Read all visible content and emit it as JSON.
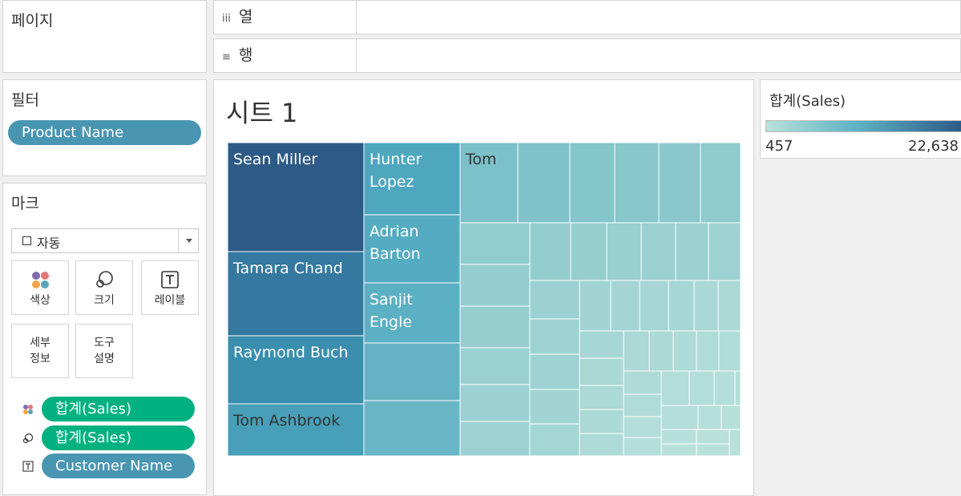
{
  "pages_panel": {
    "title": "페이지"
  },
  "shelves": {
    "columns": {
      "icon": "columns-icon",
      "glyph": "iii",
      "label": "열"
    },
    "rows": {
      "icon": "rows-icon",
      "glyph": "≡",
      "label": "행"
    }
  },
  "filters_panel": {
    "title": "필터",
    "pills": [
      "Product Name"
    ]
  },
  "marks_panel": {
    "title": "마크",
    "mark_type": "자동",
    "mark_type_icon": "square-icon",
    "buttons": [
      {
        "label": "색상",
        "icon": "color-icon"
      },
      {
        "label": "크기",
        "icon": "size-icon"
      },
      {
        "label": "레이블",
        "icon": "label-icon"
      },
      {
        "label_lines": [
          "세부",
          "정보"
        ],
        "icon": ""
      },
      {
        "label_lines": [
          "도구",
          "설명"
        ],
        "icon": ""
      }
    ],
    "fields": [
      {
        "icon": "color-icon",
        "label": "합계(Sales)",
        "color": "#00b180"
      },
      {
        "icon": "size-icon",
        "label": "합계(Sales)",
        "color": "#00b180"
      },
      {
        "icon": "label-icon",
        "label": "Customer Name",
        "color": "#4996b2"
      }
    ]
  },
  "sheet": {
    "title": "시트 1"
  },
  "legend": {
    "title": "합계(Sales)",
    "min_label": "457",
    "max_label": "22,638",
    "color_low": "#b9e1da",
    "color_high": "#2b5885"
  },
  "treemap": {
    "labeled_cells": [
      {
        "name": "Sean Miller",
        "lines": [
          "Sean Miller"
        ],
        "color": "#2d5a86"
      },
      {
        "name": "Tamara Chand",
        "lines": [
          "Tamara Chand"
        ],
        "color": "#3578a0"
      },
      {
        "name": "Raymond Buch",
        "lines": [
          "Raymond Buch"
        ],
        "color": "#3b8fae"
      },
      {
        "name": "Tom Ashbrook",
        "lines": [
          "Tom Ashbrook"
        ],
        "color": "#479fb9"
      },
      {
        "name": "Hunter Lopez",
        "lines": [
          "Hunter",
          "Lopez"
        ],
        "color": "#4ea7bf"
      },
      {
        "name": "Adrian Barton",
        "lines": [
          "Adrian",
          "Barton"
        ],
        "color": "#55abc1"
      },
      {
        "name": "Sanjit Engle",
        "lines": [
          "Sanjit",
          "Engle"
        ],
        "color": "#5cb0c3"
      },
      {
        "name": "Tom",
        "lines": [
          "Tom"
        ],
        "color": "#7cc0c9"
      }
    ]
  }
}
